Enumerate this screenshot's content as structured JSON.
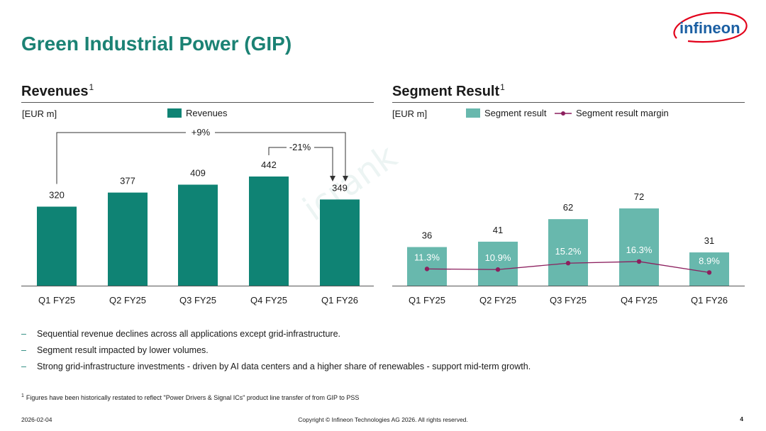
{
  "page": {
    "title": "Green Industrial Power (GIP)",
    "watermark": "icrank"
  },
  "logo": {
    "text": "infineon",
    "color": "#1b5fa3",
    "swoosh_color": "#e2001a"
  },
  "colors": {
    "title": "#1b8274",
    "revenue_bar": "#0f8374",
    "segment_bar": "#68b8ad",
    "margin_line": "#8c1f5e"
  },
  "revenues": {
    "title": "Revenues",
    "footnote_mark": "1",
    "unit": "[EUR m]",
    "legend": "Revenues",
    "annotation_long": "+9%",
    "annotation_short": "-21%"
  },
  "segment": {
    "title": "Segment Result",
    "footnote_mark": "1",
    "unit": "[EUR m]",
    "legend_bar": "Segment result",
    "legend_line": "Segment result margin"
  },
  "chart_data": [
    {
      "type": "bar",
      "title": "Revenues",
      "categories": [
        "Q1 FY25",
        "Q2 FY25",
        "Q3 FY25",
        "Q4 FY25",
        "Q1 FY26"
      ],
      "series": [
        {
          "name": "Revenues",
          "values": [
            320,
            377,
            409,
            442,
            349
          ]
        }
      ],
      "ylabel": "[EUR m]",
      "ylim": [
        0,
        500
      ],
      "annotations": [
        {
          "text": "+9%",
          "from": "Q1 FY25",
          "to": "Q1 FY26"
        },
        {
          "text": "-21%",
          "from": "Q4 FY25",
          "to": "Q1 FY26"
        }
      ],
      "grid": false,
      "legend": "top"
    },
    {
      "type": "bar",
      "title": "Segment Result",
      "categories": [
        "Q1 FY25",
        "Q2 FY25",
        "Q3 FY25",
        "Q4 FY25",
        "Q1 FY26"
      ],
      "series": [
        {
          "name": "Segment result",
          "values": [
            36,
            41,
            62,
            72,
            31
          ]
        },
        {
          "name": "Segment result margin",
          "type": "line",
          "values": [
            11.3,
            10.9,
            15.2,
            16.3,
            8.9
          ],
          "labels": [
            "11.3%",
            "10.9%",
            "15.2%",
            "16.3%",
            "8.9%"
          ]
        }
      ],
      "ylabel": "[EUR m]",
      "ylim": [
        0,
        120
      ],
      "margin_ylim": [
        0,
        60
      ],
      "grid": false,
      "legend": "top"
    }
  ],
  "bullets": [
    "Sequential revenue declines across all applications except grid-infrastructure.",
    "Segment result impacted by lower volumes.",
    "Strong grid-infrastructure investments - driven by AI data centers and a higher share of renewables - support mid-term growth."
  ],
  "footnote": {
    "mark": "1",
    "text": "Figures have been historically restated to reflect \"Power Drivers & Signal ICs\" product line transfer of from GIP to PSS"
  },
  "footer": {
    "date": "2026-02-04",
    "copyright": "Copyright © Infineon Technologies AG 2026. All rights reserved.",
    "page_number": "4"
  }
}
